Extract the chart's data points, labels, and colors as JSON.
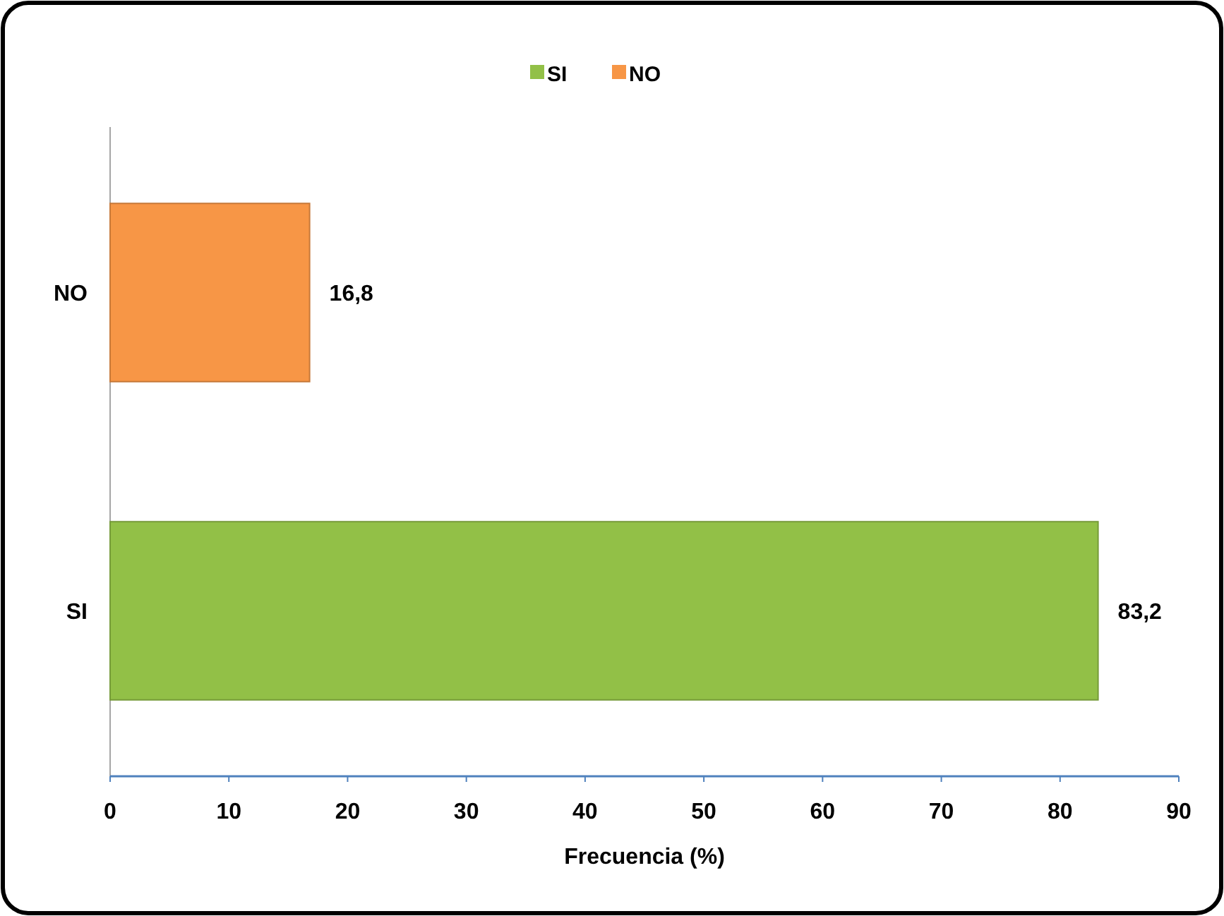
{
  "chart_data": {
    "type": "bar",
    "orientation": "horizontal",
    "stacked": true,
    "categories": [
      "NO",
      "SI"
    ],
    "series": [
      {
        "name": "SI",
        "color": "#92c047",
        "values": [
          null,
          83.2
        ],
        "value_labels": [
          null,
          "83,2"
        ]
      },
      {
        "name": "NO",
        "color": "#f79646",
        "values": [
          16.8,
          null
        ],
        "value_labels": [
          "16,8",
          null
        ]
      }
    ],
    "xlabel": "Frecuencia (%)",
    "xlim": [
      0,
      90
    ],
    "xticks": [
      0,
      10,
      20,
      30,
      40,
      50,
      60,
      70,
      80,
      90
    ],
    "legend": "top",
    "grid": false
  }
}
